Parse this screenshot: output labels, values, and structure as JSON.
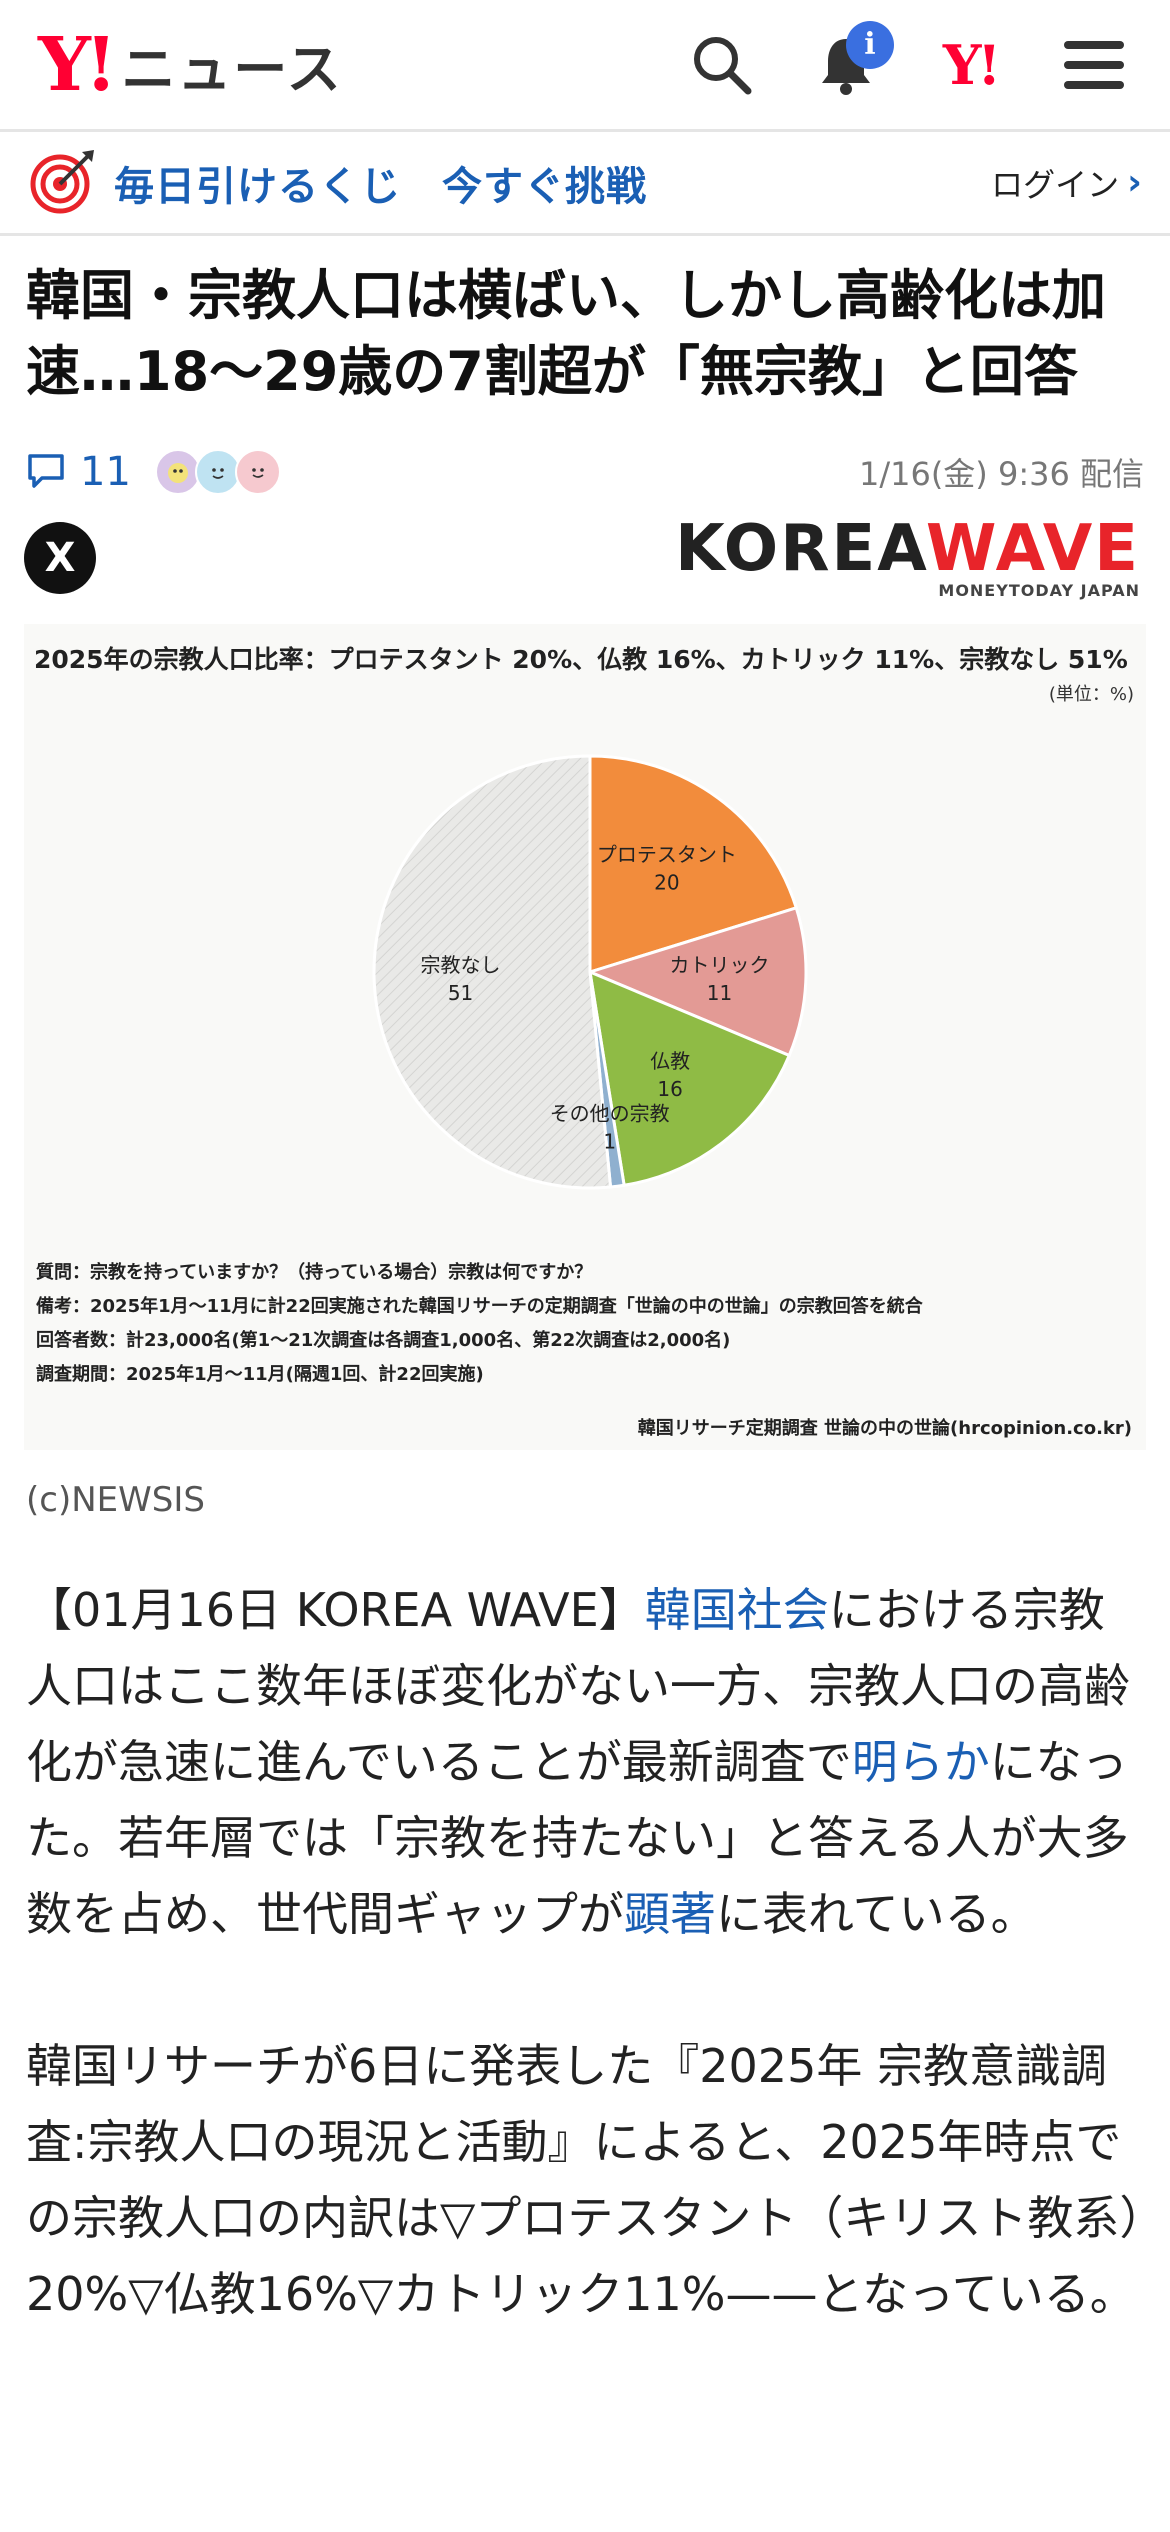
{
  "header": {
    "logo": "Y!",
    "service_name": "ニュース",
    "notification_badge": "i",
    "yahoo_logo": "Y!",
    "icons": [
      "search-icon",
      "bell-icon",
      "yahoo-logo",
      "menu-icon"
    ]
  },
  "promo": {
    "text": "毎日引けるくじ　今すぐ挑戦",
    "login_label": "ログイン",
    "login_chevron": "›"
  },
  "article": {
    "title": "韓国・宗教人口は横ばい、しかし高齢化は加速…18〜29歳の7割超が「無宗教」と回答",
    "comment_count": "11",
    "published": "1/16(金) 9:36 配信",
    "share_x": "X",
    "source_logo_left": "KOREA",
    "source_logo_right": "WAVE",
    "source_logo_sub": "MONEYTODAY JAPAN",
    "photo_credit": "(c)NEWSIS",
    "body_p1": {
      "a": "【01月16日 KOREA WAVE】",
      "link1": "韓国社会",
      "b": "における宗教人口はここ数年ほぼ変化がない一方、宗教人口の高齢化が急速に進んでいることが最新調査で",
      "link2": "明らか",
      "c": "になった。若年層では「宗教を持たない」と答える人が大多数を占め、世代間ギャップが",
      "link3": "顕著",
      "d": "に表れている。"
    },
    "body_p2": "韓国リサーチが6日に発表した『2025年 宗教意識調査:宗教人口の現況と活動』によると、2025年時点での宗教人口の内訳は▽プロテスタント（キリスト教系）20%▽仏教16%▽カトリック11%——となっている。"
  },
  "figure": {
    "title": "2025年の宗教人口比率：プロテスタント 20%、仏教 16%、カトリック 11%、宗教なし 51%",
    "unit": "(単位：%)",
    "notes": [
      "質問：宗教を持っていますか？（持っている場合）宗教は何ですか？",
      "備考：2025年1月〜11月に計22回実施された韓国リサーチの定期調査「世論の中の世論」の宗教回答を統合",
      "回答者数：計23,000名(第1〜21次調査は各調査1,000名、第22次調査は2,000名)",
      "調査期間：2025年1月〜11月(隔週1回、計22回実施)"
    ],
    "credit": "韓国リサーチ定期調査 世論の中の世論(hrcopinion.co.kr)"
  },
  "chart_data": {
    "type": "pie",
    "title": "2025年の宗教人口比率：プロテスタント 20%、仏教 16%、カトリック 11%、宗教なし 51%",
    "slices": [
      {
        "label": "プロテスタント",
        "value": 20,
        "color": "#f28c3c"
      },
      {
        "label": "カトリック",
        "value": 11,
        "color": "#e39a95"
      },
      {
        "label": "仏教",
        "value": 16,
        "color": "#8fbb45"
      },
      {
        "label": "その他の宗教",
        "value": 1,
        "color": "#8fb0cf"
      },
      {
        "label": "宗教なし",
        "value": 51,
        "color": "#e4e4e2"
      }
    ]
  }
}
